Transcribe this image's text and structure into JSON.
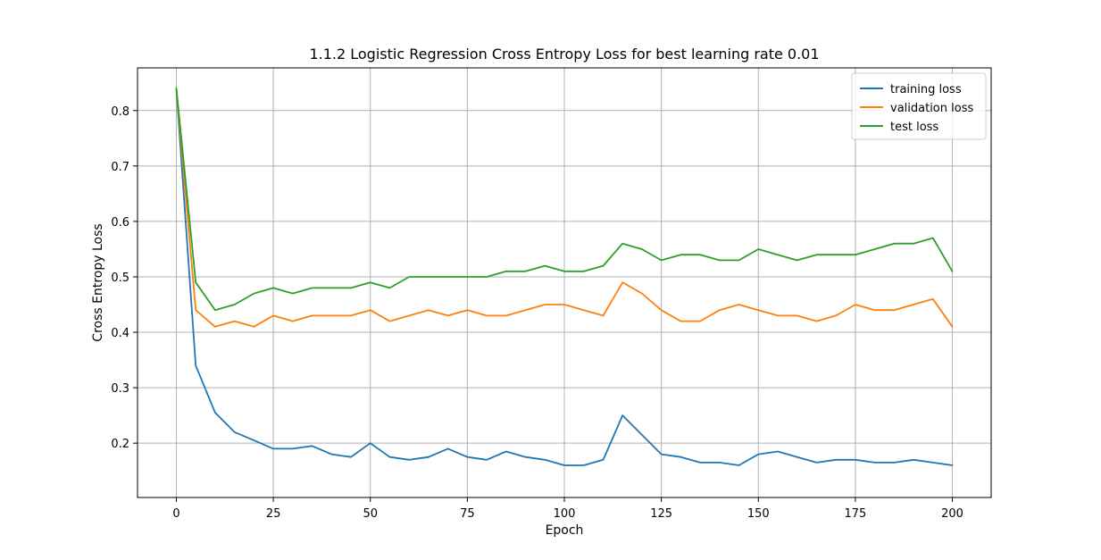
{
  "chart_data": {
    "type": "line",
    "title": "1.1.2 Logistic Regression Cross Entropy Loss for best learning rate 0.01",
    "xlabel": "Epoch",
    "ylabel": "Cross Entropy Loss",
    "xlim": [
      -10,
      210
    ],
    "ylim": [
      0.102,
      0.877
    ],
    "xticks": [
      0,
      25,
      50,
      75,
      100,
      125,
      150,
      175,
      200
    ],
    "yticks": [
      0.2,
      0.3,
      0.4,
      0.5,
      0.6,
      0.7,
      0.8
    ],
    "grid": true,
    "legend_position": "top-right",
    "colors": {
      "training": "#1f77b4",
      "validation": "#ff7f0e",
      "test": "#2ca02c",
      "grid": "#b0b0b0"
    },
    "series": [
      {
        "name": "training loss",
        "color": "#1f77b4",
        "x_step": 5,
        "values": [
          0.84,
          0.34,
          0.255,
          0.22,
          0.205,
          0.19,
          0.19,
          0.195,
          0.18,
          0.175,
          0.2,
          0.175,
          0.17,
          0.175,
          0.19,
          0.175,
          0.17,
          0.185,
          0.175,
          0.17,
          0.16,
          0.16,
          0.17,
          0.25,
          0.215,
          0.18,
          0.175,
          0.165,
          0.165,
          0.16,
          0.18,
          0.185,
          0.175,
          0.165,
          0.17,
          0.17,
          0.165,
          0.165,
          0.17,
          0.165,
          0.16
        ]
      },
      {
        "name": "validation loss",
        "color": "#ff7f0e",
        "x_step": 5,
        "values": [
          0.84,
          0.44,
          0.41,
          0.42,
          0.41,
          0.43,
          0.42,
          0.43,
          0.43,
          0.43,
          0.44,
          0.42,
          0.43,
          0.44,
          0.43,
          0.44,
          0.43,
          0.43,
          0.44,
          0.45,
          0.45,
          0.44,
          0.43,
          0.49,
          0.47,
          0.44,
          0.42,
          0.42,
          0.44,
          0.45,
          0.44,
          0.43,
          0.43,
          0.42,
          0.43,
          0.45,
          0.44,
          0.44,
          0.45,
          0.46,
          0.41
        ]
      },
      {
        "name": "test loss",
        "color": "#2ca02c",
        "x_step": 5,
        "values": [
          0.84,
          0.49,
          0.44,
          0.45,
          0.47,
          0.48,
          0.47,
          0.48,
          0.48,
          0.48,
          0.49,
          0.48,
          0.5,
          0.5,
          0.5,
          0.5,
          0.5,
          0.51,
          0.51,
          0.52,
          0.51,
          0.51,
          0.52,
          0.56,
          0.55,
          0.53,
          0.54,
          0.54,
          0.53,
          0.53,
          0.55,
          0.54,
          0.53,
          0.54,
          0.54,
          0.54,
          0.55,
          0.56,
          0.56,
          0.57,
          0.51
        ]
      }
    ]
  }
}
